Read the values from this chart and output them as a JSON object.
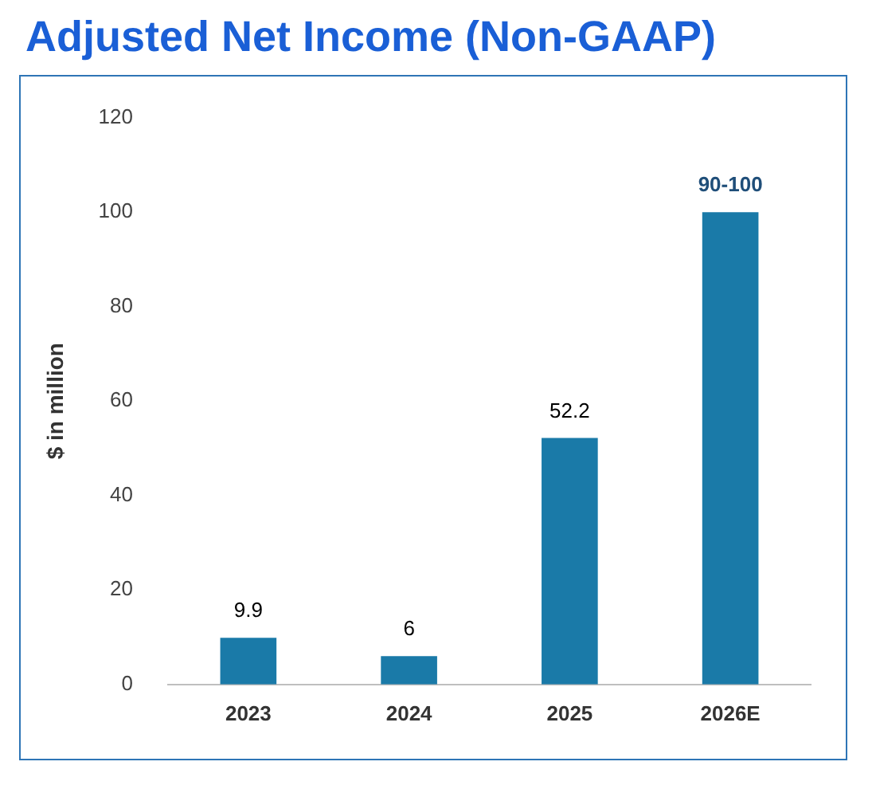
{
  "chart_data": {
    "type": "bar",
    "title": "Adjusted Net Income (Non-GAAP)",
    "ylabel": "$ in million",
    "categories": [
      "2023",
      "2024",
      "2025",
      "2026E"
    ],
    "values": [
      9.9,
      6,
      52.2,
      100
    ],
    "value_labels": [
      "9.9",
      "6",
      "52.2",
      "90-100"
    ],
    "color": "#1a7aa8",
    "ylim": [
      0,
      120
    ],
    "yticks": [
      0,
      20,
      40,
      60,
      80,
      100,
      120
    ],
    "grid": false,
    "legend": false
  }
}
